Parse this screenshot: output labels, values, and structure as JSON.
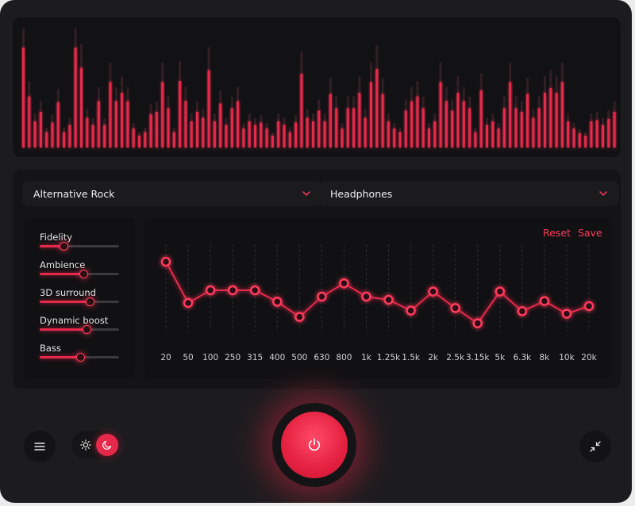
{
  "visualizer": {
    "bars": [
      0.84,
      0.43,
      0.22,
      0.3,
      0.13,
      0.21,
      0.38,
      0.13,
      0.19,
      0.84,
      0.67,
      0.25,
      0.19,
      0.39,
      0.19,
      0.55,
      0.39,
      0.46,
      0.39,
      0.16,
      0.1,
      0.13,
      0.28,
      0.3,
      0.55,
      0.33,
      0.13,
      0.56,
      0.39,
      0.22,
      0.3,
      0.25,
      0.65,
      0.22,
      0.37,
      0.19,
      0.33,
      0.39,
      0.16,
      0.22,
      0.19,
      0.21,
      0.16,
      0.1,
      0.22,
      0.19,
      0.13,
      0.21,
      0.62,
      0.25,
      0.22,
      0.31,
      0.22,
      0.45,
      0.33,
      0.16,
      0.33,
      0.33,
      0.46,
      0.25,
      0.55,
      0.66,
      0.45,
      0.22,
      0.16,
      0.13,
      0.31,
      0.39,
      0.43,
      0.33,
      0.16,
      0.22,
      0.55,
      0.39,
      0.31,
      0.46,
      0.39,
      0.33,
      0.13,
      0.48,
      0.19,
      0.22,
      0.16,
      0.33,
      0.55,
      0.33,
      0.3,
      0.45,
      0.25,
      0.33,
      0.46,
      0.5,
      0.46,
      0.55,
      0.22,
      0.16,
      0.12,
      0.1,
      0.22,
      0.23,
      0.19,
      0.24,
      0.3
    ]
  },
  "presets": {
    "genre": "Alternative Rock",
    "device": "Headphones"
  },
  "sliders": [
    {
      "label": "Fidelity",
      "value": 0.31
    },
    {
      "label": "Ambience",
      "value": 0.56
    },
    {
      "label": "3D surround",
      "value": 0.64
    },
    {
      "label": "Dynamic boost",
      "value": 0.6
    },
    {
      "label": "Bass",
      "value": 0.52
    }
  ],
  "equalizer": {
    "reset_label": "Reset",
    "save_label": "Save",
    "bands": [
      {
        "label": "20",
        "level": 1.0
      },
      {
        "label": "50",
        "level": 0.35
      },
      {
        "label": "100",
        "level": 0.55
      },
      {
        "label": "250",
        "level": 0.55
      },
      {
        "label": "315",
        "level": 0.55
      },
      {
        "label": "400",
        "level": 0.37
      },
      {
        "label": "500",
        "level": 0.13
      },
      {
        "label": "630",
        "level": 0.45
      },
      {
        "label": "800",
        "level": 0.66
      },
      {
        "label": "1k",
        "level": 0.45
      },
      {
        "label": "1.25k",
        "level": 0.4
      },
      {
        "label": "1.5k",
        "level": 0.23
      },
      {
        "label": "2k",
        "level": 0.53
      },
      {
        "label": "2.5k",
        "level": 0.27
      },
      {
        "label": "3.15k",
        "level": 0.03
      },
      {
        "label": "5k",
        "level": 0.53
      },
      {
        "label": "6.3k",
        "level": 0.22
      },
      {
        "label": "8k",
        "level": 0.38
      },
      {
        "label": "10k",
        "level": 0.18
      },
      {
        "label": "20k",
        "level": 0.3
      }
    ]
  },
  "controls": {
    "menu_icon": "menu-icon",
    "sun_icon": "sun-icon",
    "moon_icon": "moon-icon",
    "power_icon": "power-icon",
    "collapse_icon": "collapse-icon"
  },
  "colors": {
    "accent": "#e6294b",
    "background": "#1c1c1e"
  }
}
